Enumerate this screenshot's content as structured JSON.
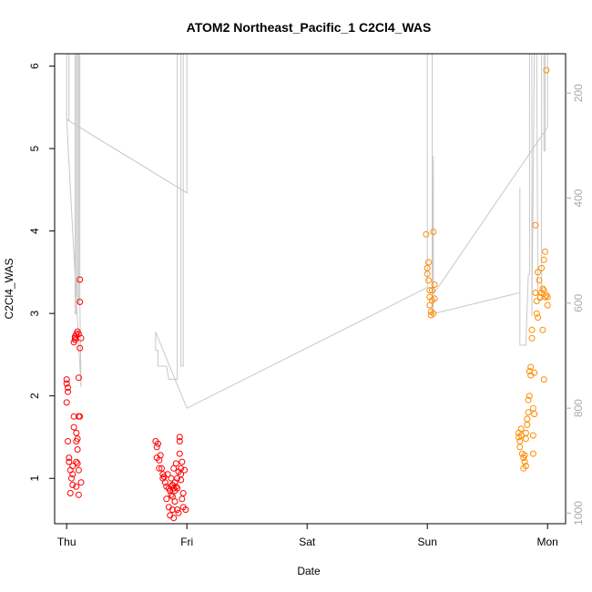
{
  "chart_data": {
    "type": "scatter",
    "title": "ATOM2 Northeast_Pacific_1 C2Cl4_WAS",
    "xlabel": "Date",
    "ylabel": "C2Cl4_WAS",
    "x_ticks": [
      "Thu",
      "Fri",
      "Sat",
      "Sun",
      "Mon"
    ],
    "x_unit": "days since Thu 00:00",
    "xlim": [
      -0.1,
      4.15
    ],
    "ylim": [
      0.45,
      6.15
    ],
    "y_ticks": [
      1,
      2,
      3,
      4,
      5,
      6
    ],
    "right_axis": {
      "ticks": [
        200,
        400,
        600,
        800,
        1000
      ],
      "lim": [
        1020,
        125
      ],
      "color": "#aaaaaa"
    },
    "grid": false,
    "series": [
      {
        "color": "#ff0000",
        "points": [
          [
            0.0,
            2.2
          ],
          [
            0.0,
            2.15
          ],
          [
            0.01,
            2.05
          ],
          [
            0.01,
            2.1
          ],
          [
            0.0,
            1.92
          ],
          [
            0.01,
            1.45
          ],
          [
            0.02,
            1.25
          ],
          [
            0.02,
            1.2
          ],
          [
            0.03,
            1.1
          ],
          [
            0.03,
            0.82
          ],
          [
            0.04,
            1.0
          ],
          [
            0.05,
            1.15
          ],
          [
            0.05,
            1.05
          ],
          [
            0.05,
            0.92
          ],
          [
            0.06,
            1.62
          ],
          [
            0.06,
            1.75
          ],
          [
            0.06,
            2.65
          ],
          [
            0.07,
            2.7
          ],
          [
            0.07,
            2.72
          ],
          [
            0.07,
            2.68
          ],
          [
            0.08,
            2.75
          ],
          [
            0.08,
            1.55
          ],
          [
            0.08,
            1.45
          ],
          [
            0.08,
            1.2
          ],
          [
            0.08,
            0.9
          ],
          [
            0.09,
            2.78
          ],
          [
            0.09,
            1.48
          ],
          [
            0.09,
            1.35
          ],
          [
            0.09,
            1.18
          ],
          [
            0.1,
            2.75
          ],
          [
            0.1,
            2.22
          ],
          [
            0.1,
            1.75
          ],
          [
            0.1,
            1.1
          ],
          [
            0.1,
            0.8
          ],
          [
            0.11,
            3.41
          ],
          [
            0.11,
            3.14
          ],
          [
            0.11,
            2.58
          ],
          [
            0.11,
            1.75
          ],
          [
            0.12,
            0.95
          ],
          [
            0.12,
            2.7
          ],
          [
            0.74,
            1.45
          ],
          [
            0.75,
            1.38
          ],
          [
            0.75,
            1.25
          ],
          [
            0.76,
            1.42
          ],
          [
            0.77,
            1.22
          ],
          [
            0.77,
            1.12
          ],
          [
            0.78,
            1.28
          ],
          [
            0.79,
            1.12
          ],
          [
            0.8,
            1.05
          ],
          [
            0.8,
            1.0
          ],
          [
            0.81,
            1.02
          ],
          [
            0.82,
            0.95
          ],
          [
            0.83,
            0.9
          ],
          [
            0.83,
            0.75
          ],
          [
            0.84,
            1.05
          ],
          [
            0.85,
            0.88
          ],
          [
            0.85,
            0.65
          ],
          [
            0.86,
            0.85
          ],
          [
            0.86,
            0.55
          ],
          [
            0.87,
            1.0
          ],
          [
            0.87,
            0.9
          ],
          [
            0.87,
            0.8
          ],
          [
            0.88,
            0.92
          ],
          [
            0.88,
            0.78
          ],
          [
            0.88,
            0.62
          ],
          [
            0.89,
            0.88
          ],
          [
            0.89,
            1.12
          ],
          [
            0.89,
            0.52
          ],
          [
            0.9,
            0.95
          ],
          [
            0.9,
            0.85
          ],
          [
            0.9,
            0.72
          ],
          [
            0.91,
            1.18
          ],
          [
            0.91,
            0.9
          ],
          [
            0.92,
            1.0
          ],
          [
            0.92,
            0.88
          ],
          [
            0.92,
            0.62
          ],
          [
            0.93,
            1.08
          ],
          [
            0.93,
            0.58
          ],
          [
            0.94,
            1.5
          ],
          [
            0.94,
            1.45
          ],
          [
            0.94,
            1.3
          ],
          [
            0.95,
            1.12
          ],
          [
            0.95,
            1.05
          ],
          [
            0.95,
            0.98
          ],
          [
            0.96,
            1.2
          ],
          [
            0.96,
            0.75
          ],
          [
            0.97,
            0.82
          ],
          [
            0.97,
            0.65
          ],
          [
            0.98,
            1.1
          ],
          [
            0.99,
            0.62
          ]
        ]
      },
      {
        "color": "#ff8c00",
        "points": [
          [
            2.99,
            3.96
          ],
          [
            3.0,
            3.55
          ],
          [
            3.0,
            3.48
          ],
          [
            3.01,
            3.62
          ],
          [
            3.01,
            3.4
          ],
          [
            3.02,
            3.28
          ],
          [
            3.02,
            3.2
          ],
          [
            3.02,
            3.1
          ],
          [
            3.03,
            2.98
          ],
          [
            3.03,
            3.02
          ],
          [
            3.04,
            3.28
          ],
          [
            3.04,
            3.16
          ],
          [
            3.05,
            3.0
          ],
          [
            3.05,
            3.99
          ],
          [
            3.06,
            3.18
          ],
          [
            3.06,
            3.35
          ],
          [
            3.76,
            1.55
          ],
          [
            3.76,
            1.5
          ],
          [
            3.77,
            1.45
          ],
          [
            3.77,
            1.38
          ],
          [
            3.78,
            1.6
          ],
          [
            3.78,
            1.52
          ],
          [
            3.79,
            1.3
          ],
          [
            3.8,
            1.25
          ],
          [
            3.8,
            1.12
          ],
          [
            3.81,
            1.2
          ],
          [
            3.81,
            1.28
          ],
          [
            3.82,
            1.15
          ],
          [
            3.82,
            1.48
          ],
          [
            3.82,
            1.55
          ],
          [
            3.83,
            1.65
          ],
          [
            3.83,
            1.72
          ],
          [
            3.84,
            1.8
          ],
          [
            3.84,
            1.95
          ],
          [
            3.85,
            2.0
          ],
          [
            3.85,
            2.3
          ],
          [
            3.86,
            2.25
          ],
          [
            3.86,
            2.35
          ],
          [
            3.87,
            2.8
          ],
          [
            3.87,
            2.7
          ],
          [
            3.88,
            1.85
          ],
          [
            3.88,
            1.52
          ],
          [
            3.88,
            1.3
          ],
          [
            3.89,
            2.28
          ],
          [
            3.89,
            1.78
          ],
          [
            3.9,
            4.07
          ],
          [
            3.9,
            3.25
          ],
          [
            3.91,
            3.15
          ],
          [
            3.91,
            3.0
          ],
          [
            3.92,
            2.95
          ],
          [
            3.92,
            3.5
          ],
          [
            3.93,
            3.4
          ],
          [
            3.94,
            3.2
          ],
          [
            3.95,
            3.25
          ],
          [
            3.95,
            3.55
          ],
          [
            3.96,
            3.3
          ],
          [
            3.97,
            3.28
          ],
          [
            3.97,
            3.65
          ],
          [
            3.98,
            3.75
          ],
          [
            3.98,
            3.2
          ],
          [
            3.99,
            3.22
          ],
          [
            3.99,
            5.95
          ],
          [
            4.0,
            3.1
          ],
          [
            4.0,
            3.2
          ],
          [
            3.97,
            2.2
          ],
          [
            3.96,
            2.8
          ]
        ]
      },
      {
        "name": "",
        "color": "#c8c8c8",
        "axis": "right",
        "path": [
          [
            0.0,
            125
          ],
          [
            0.0,
            250
          ],
          [
            0.02,
            250
          ],
          [
            0.02,
            125
          ],
          [
            0.07,
            125
          ],
          [
            0.07,
            620
          ],
          [
            0.08,
            620
          ],
          [
            0.08,
            125
          ],
          [
            0.09,
            125
          ],
          [
            0.09,
            600
          ],
          [
            0.1,
            600
          ],
          [
            0.1,
            125
          ],
          [
            0.11,
            125
          ],
          [
            0.11,
            600
          ],
          [
            0.12,
            760
          ],
          [
            0.0,
            250
          ],
          [
            1.0,
            390
          ],
          [
            1.0,
            110
          ],
          [
            0.97,
            110
          ],
          [
            0.97,
            720
          ],
          [
            0.95,
            720
          ],
          [
            0.95,
            110
          ],
          [
            0.92,
            110
          ],
          [
            0.92,
            745
          ],
          [
            0.85,
            745
          ],
          [
            0.83,
            720
          ],
          [
            0.76,
            720
          ],
          [
            0.76,
            690
          ],
          [
            0.74,
            690
          ],
          [
            0.74,
            655
          ],
          [
            1.0,
            800
          ],
          [
            3.0,
            570
          ],
          [
            3.0,
            125
          ],
          [
            3.04,
            125
          ],
          [
            3.04,
            620
          ],
          [
            3.05,
            320
          ],
          [
            3.05,
            620
          ],
          [
            3.77,
            580
          ],
          [
            3.77,
            380
          ],
          [
            3.77,
            680
          ],
          [
            3.82,
            680
          ],
          [
            3.84,
            545
          ],
          [
            3.85,
            545
          ],
          [
            3.85,
            125
          ],
          [
            3.87,
            125
          ],
          [
            3.87,
            625
          ],
          [
            3.89,
            125
          ],
          [
            3.91,
            125
          ],
          [
            3.92,
            595
          ],
          [
            3.95,
            595
          ],
          [
            3.95,
            125
          ],
          [
            3.97,
            125
          ],
          [
            3.97,
            310
          ],
          [
            3.98,
            310
          ],
          [
            3.98,
            125
          ],
          [
            4.0,
            125
          ],
          [
            4.0,
            265
          ],
          [
            3.06,
            580
          ]
        ]
      }
    ]
  }
}
